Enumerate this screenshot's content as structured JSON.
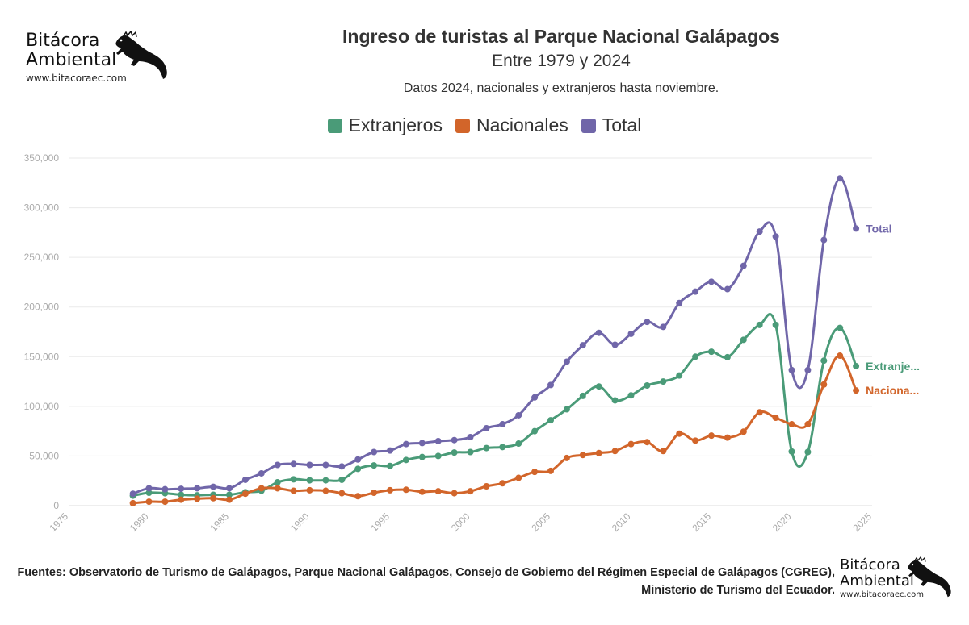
{
  "logo": {
    "name_line1": "Bitácora",
    "name_line2": "Ambiental",
    "url": "www.bitacoraec.com"
  },
  "header": {
    "title": "Ingreso de turistas al Parque Nacional Galápagos",
    "subtitle": "Entre 1979 y 2024",
    "note": "Datos 2024, nacionales y extranjeros hasta noviembre."
  },
  "footer": {
    "sources": "Fuentes: Observatorio de Turismo de Galápagos, Parque Nacional Galápagos, Consejo de Gobierno del Régimen Especial de Galápagos (CGREG), Ministerio de Turismo del Ecuador."
  },
  "colors": {
    "extranjeros": "#4a9b78",
    "nacionales": "#d2652a",
    "total": "#7066a9"
  },
  "chart_data": {
    "type": "line",
    "title": "Ingreso de turistas al Parque Nacional Galápagos",
    "subtitle": "Entre 1979 y 2024",
    "xlim": [
      1975,
      2025
    ],
    "ylim": [
      0,
      350000
    ],
    "x_ticks": [
      "1975",
      "1980",
      "1985",
      "1990",
      "1995",
      "2000",
      "2005",
      "2010",
      "2015",
      "2020",
      "2025"
    ],
    "y_ticks": [
      "0",
      "50,000",
      "100,000",
      "150,000",
      "200,000",
      "250,000",
      "300,000",
      "350,000"
    ],
    "grid": "horizontal",
    "legend_position": "top",
    "x": [
      1979,
      1980,
      1981,
      1982,
      1983,
      1984,
      1985,
      1986,
      1987,
      1988,
      1989,
      1990,
      1991,
      1992,
      1993,
      1994,
      1995,
      1996,
      1997,
      1998,
      1999,
      2000,
      2001,
      2002,
      2003,
      2004,
      2005,
      2006,
      2007,
      2008,
      2009,
      2010,
      2011,
      2012,
      2013,
      2014,
      2015,
      2016,
      2017,
      2018,
      2019,
      2020,
      2021,
      2022,
      2023,
      2024
    ],
    "series": [
      {
        "name": "Extranjeros",
        "end_label": "Extranje...",
        "color": "#4a9b78",
        "values": [
          10000,
          13000,
          12500,
          11000,
          10500,
          11000,
          11000,
          13500,
          15000,
          23500,
          26500,
          25500,
          25500,
          26000,
          37000,
          40500,
          40000,
          46000,
          49000,
          50000,
          53500,
          54000,
          58000,
          59000,
          62500,
          75000,
          86000,
          97000,
          110500,
          120000,
          106000,
          111000,
          121000,
          125000,
          131000,
          150000,
          155000,
          149500,
          167000,
          182000,
          182000,
          54500,
          54000,
          146000,
          179000,
          140500
        ]
      },
      {
        "name": "Nacionales",
        "end_label": "Naciona...",
        "color": "#d2652a",
        "values": [
          2500,
          4000,
          4000,
          6000,
          7000,
          7500,
          6000,
          12000,
          17500,
          17500,
          15000,
          15500,
          15000,
          12500,
          9500,
          13000,
          15500,
          16000,
          14000,
          14500,
          12500,
          14500,
          19500,
          22500,
          28000,
          34000,
          35000,
          48000,
          51000,
          53000,
          55000,
          62000,
          64000,
          55000,
          72500,
          65500,
          70500,
          68500,
          74500,
          94000,
          88500,
          82000,
          82000,
          122000,
          151000,
          116000
        ]
      },
      {
        "name": "Total",
        "end_label": "Total",
        "color": "#7066a9",
        "values": [
          12000,
          17500,
          16500,
          17000,
          17500,
          19000,
          17500,
          26000,
          32500,
          41000,
          42000,
          41000,
          41000,
          39500,
          46500,
          54000,
          55500,
          62000,
          63000,
          65000,
          66000,
          69000,
          78000,
          82000,
          91000,
          109000,
          121500,
          145000,
          161500,
          174000,
          162000,
          173000,
          185000,
          180000,
          204000,
          215500,
          225500,
          218000,
          241500,
          276000,
          271000,
          136500,
          136500,
          267500,
          329500,
          279000
        ]
      }
    ]
  }
}
